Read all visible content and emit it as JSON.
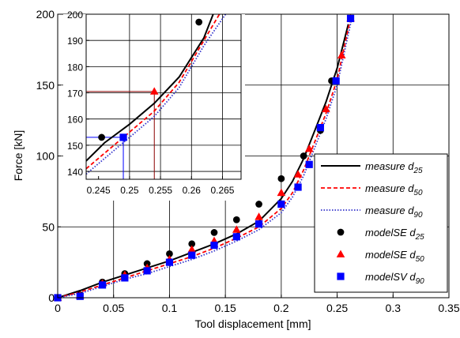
{
  "chart_data": [
    {
      "type": "line",
      "xlabel": "Tool displacement [mm]",
      "ylabel": "Force [kN]",
      "xlim": [
        0,
        0.35
      ],
      "ylim": [
        0,
        200
      ],
      "xticks": [
        0,
        0.05,
        0.1,
        0.15,
        0.2,
        0.25,
        0.3,
        0.35
      ],
      "xtick_labels": [
        "0",
        "0.05",
        "0.1",
        "0.15",
        "0.2",
        "0.25",
        "0.3",
        "0.35"
      ],
      "yticks": [
        0,
        50,
        100,
        150,
        200
      ],
      "ytick_labels": [
        "0",
        "50",
        "100",
        "150",
        "200"
      ],
      "grid": true,
      "legend_position": "bottom-right",
      "series": [
        {
          "name": "measure",
          "sub": "25",
          "style": "solid",
          "color": "#000000",
          "x": [
            0,
            0.02,
            0.04,
            0.06,
            0.08,
            0.1,
            0.12,
            0.14,
            0.16,
            0.18,
            0.2,
            0.21,
            0.22,
            0.23,
            0.24,
            0.25,
            0.26
          ],
          "y": [
            0,
            5,
            11,
            16,
            21,
            26,
            32,
            38,
            45,
            54,
            70,
            82,
            98,
            118,
            138,
            162,
            193
          ]
        },
        {
          "name": "measure",
          "sub": "50",
          "style": "dashed",
          "color": "#ff0000",
          "x": [
            0,
            0.02,
            0.04,
            0.06,
            0.08,
            0.1,
            0.12,
            0.14,
            0.16,
            0.18,
            0.2,
            0.21,
            0.22,
            0.23,
            0.24,
            0.25,
            0.262
          ],
          "y": [
            0,
            4,
            9,
            14,
            19,
            24,
            29,
            35,
            42,
            50,
            63,
            74,
            90,
            110,
            130,
            154,
            197
          ]
        },
        {
          "name": "measure",
          "sub": "90",
          "style": "dotted",
          "color": "#3333cc",
          "x": [
            0,
            0.02,
            0.04,
            0.06,
            0.08,
            0.1,
            0.12,
            0.14,
            0.16,
            0.18,
            0.2,
            0.21,
            0.22,
            0.23,
            0.24,
            0.25,
            0.263
          ],
          "y": [
            0,
            3,
            8,
            13,
            17,
            22,
            27,
            33,
            40,
            48,
            60,
            71,
            86,
            106,
            126,
            150,
            197
          ]
        },
        {
          "name": "modelSE",
          "sub": "25",
          "marker": "circle",
          "color": "#000000",
          "x": [
            0,
            0.02,
            0.04,
            0.06,
            0.08,
            0.1,
            0.12,
            0.14,
            0.16,
            0.18,
            0.2,
            0.22,
            0.235,
            0.245,
            0.262
          ],
          "y": [
            0,
            2,
            11,
            17,
            24,
            31,
            38,
            46,
            55,
            66,
            84,
            100,
            118,
            153,
            197
          ]
        },
        {
          "name": "modelSE",
          "sub": "50",
          "marker": "triangle",
          "color": "#ff0000",
          "x": [
            0,
            0.02,
            0.04,
            0.06,
            0.08,
            0.1,
            0.12,
            0.14,
            0.16,
            0.18,
            0.2,
            0.215,
            0.225,
            0.24,
            0.254,
            0.262
          ],
          "y": [
            0,
            1.5,
            10,
            16,
            21,
            27,
            34,
            40,
            48,
            57,
            74,
            87,
            105,
            133,
            171,
            197
          ]
        },
        {
          "name": "modelSV",
          "sub": "90",
          "marker": "square",
          "color": "#0000ff",
          "x": [
            0,
            0.02,
            0.04,
            0.06,
            0.08,
            0.1,
            0.12,
            0.14,
            0.16,
            0.18,
            0.2,
            0.215,
            0.225,
            0.235,
            0.249,
            0.262
          ],
          "y": [
            0,
            1,
            9,
            14,
            19,
            25,
            30,
            37,
            43,
            52,
            66,
            78,
            94,
            120,
            153,
            197
          ]
        }
      ]
    },
    {
      "type": "line",
      "role": "inset",
      "xlim": [
        0.243,
        0.268
      ],
      "ylim": [
        137,
        200
      ],
      "xticks": [
        0.245,
        0.25,
        0.255,
        0.26,
        0.265
      ],
      "xtick_labels": [
        "0.245",
        "0.25",
        "0.255",
        "0.26",
        "0.265"
      ],
      "yticks": [
        140,
        150,
        160,
        170,
        180,
        190,
        200
      ],
      "ytick_labels": [
        "140",
        "150",
        "160",
        "170",
        "180",
        "190",
        "200"
      ],
      "grid": true,
      "series": [
        {
          "name": "measure",
          "sub": "25",
          "style": "solid",
          "color": "#000000",
          "x": [
            0.243,
            0.246,
            0.25,
            0.254,
            0.258,
            0.262,
            0.2635
          ],
          "y": [
            144,
            151,
            158,
            166,
            176,
            191,
            200
          ]
        },
        {
          "name": "measure",
          "sub": "50",
          "style": "dashed",
          "color": "#ff0000",
          "x": [
            0.243,
            0.246,
            0.25,
            0.254,
            0.258,
            0.262,
            0.2645
          ],
          "y": [
            141,
            147,
            155,
            163,
            174,
            190,
            200
          ]
        },
        {
          "name": "measure",
          "sub": "90",
          "style": "dotted",
          "color": "#3333cc",
          "x": [
            0.243,
            0.246,
            0.25,
            0.254,
            0.258,
            0.262,
            0.2655
          ],
          "y": [
            139,
            145,
            153,
            161,
            172,
            188,
            200
          ]
        },
        {
          "name": "modelSE",
          "sub": "25",
          "marker": "circle",
          "color": "#000000",
          "x": [
            0.2455,
            0.2612
          ],
          "y": [
            153,
            197
          ]
        },
        {
          "name": "modelSE",
          "sub": "50",
          "marker": "triangle",
          "color": "#ff0000",
          "x": [
            0.254
          ],
          "y": [
            170.5
          ]
        },
        {
          "name": "modelSV",
          "sub": "90",
          "marker": "square",
          "color": "#0000ff",
          "x": [
            0.249
          ],
          "y": [
            153
          ]
        }
      ],
      "reference_lines": [
        {
          "color": "#8b0000",
          "x": 0.254,
          "y": 170.5
        },
        {
          "color": "#0000ff",
          "x": 0.249,
          "y": 153
        }
      ]
    }
  ]
}
